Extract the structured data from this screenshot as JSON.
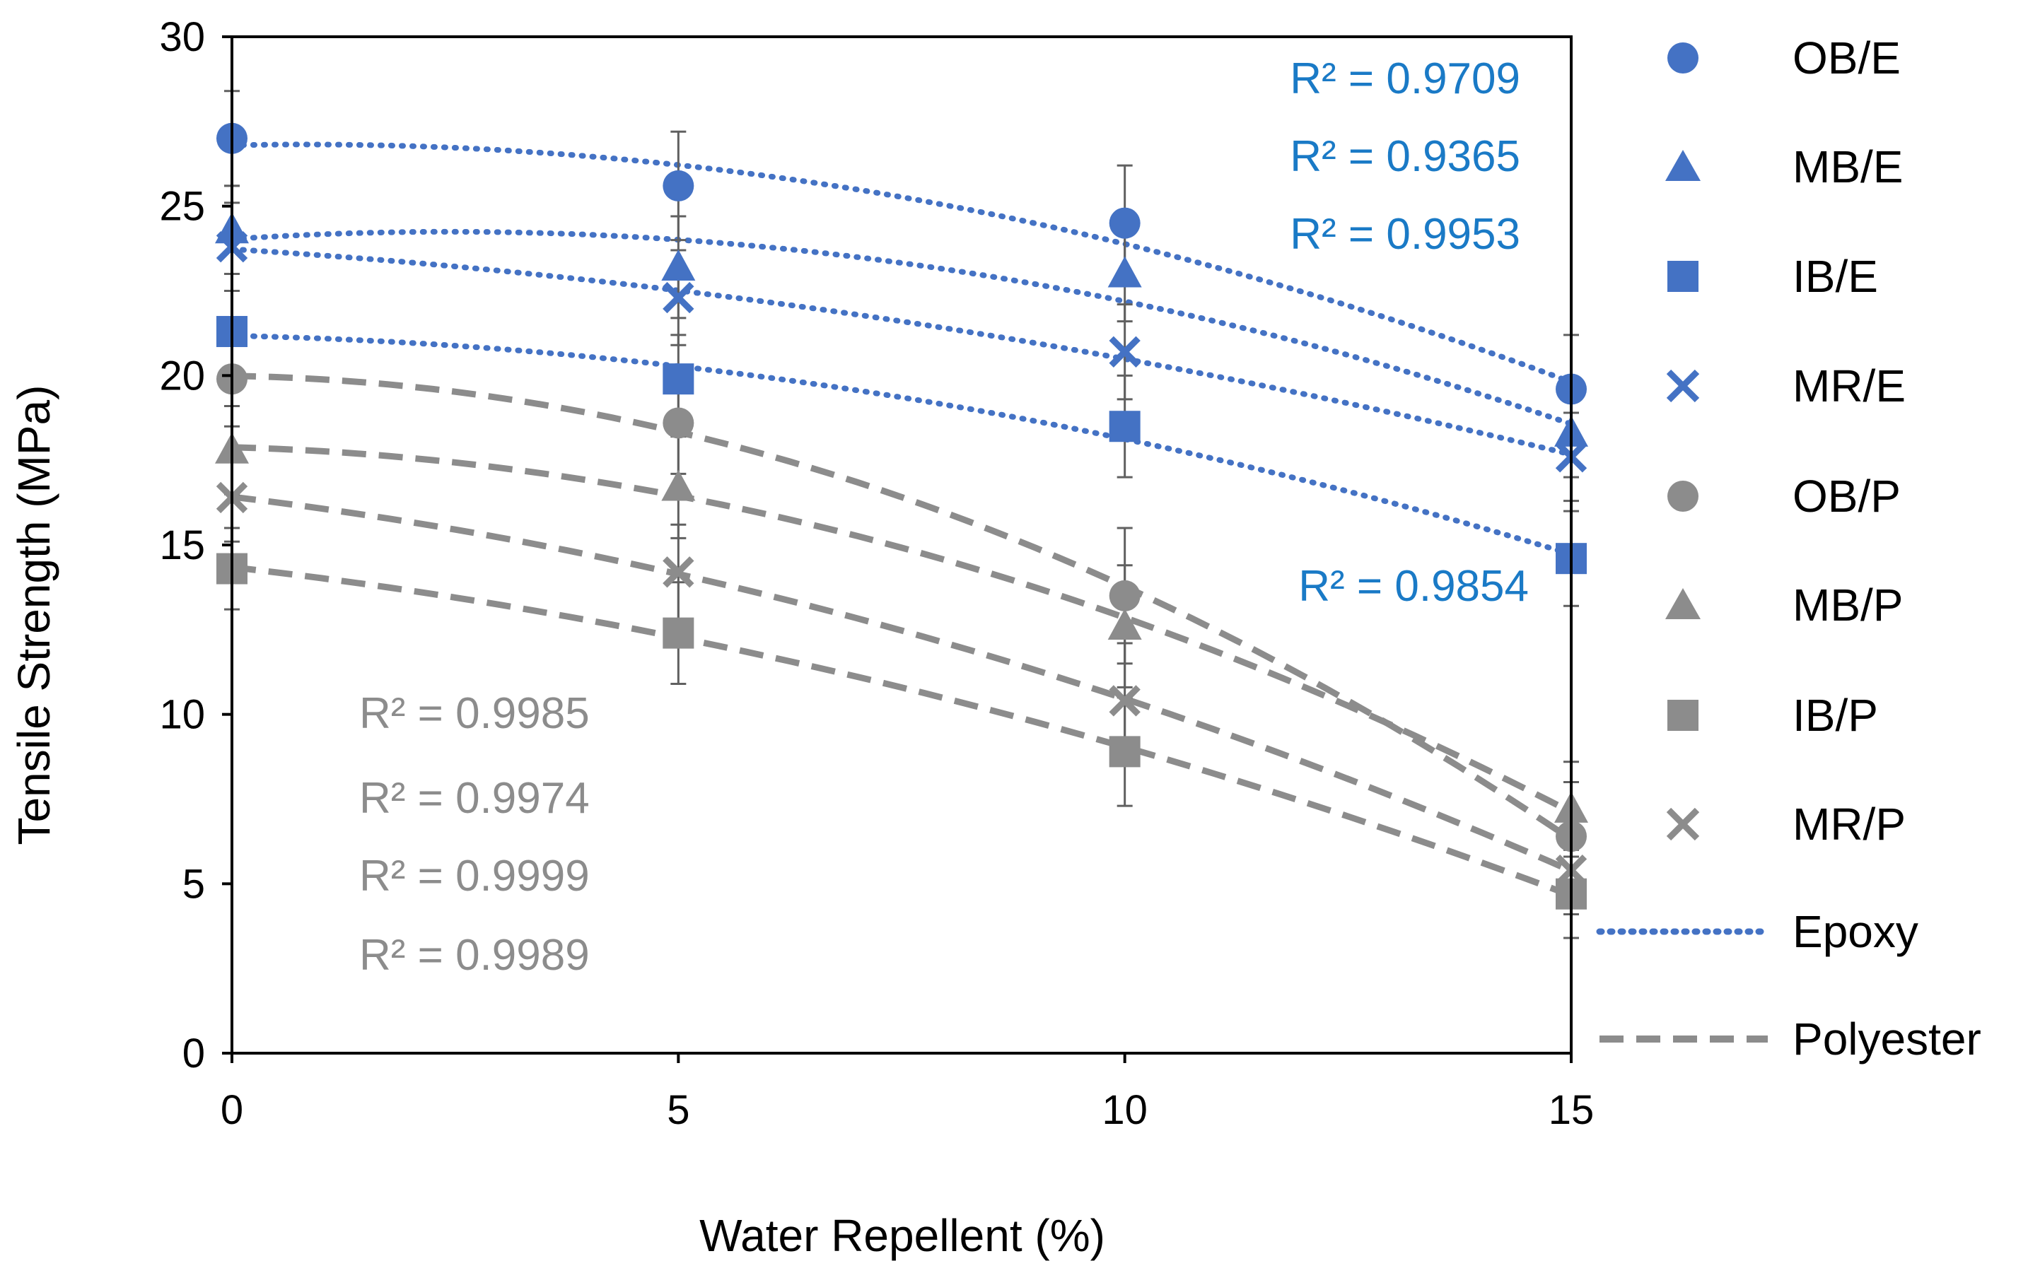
{
  "chart_data": {
    "type": "scatter",
    "title": "",
    "xlabel": "Water Repellent (%)",
    "ylabel": "Tensile Strength (MPa)",
    "xlim": [
      0,
      15
    ],
    "ylim": [
      0,
      30
    ],
    "xticks": [
      "0",
      "5",
      "10",
      "15"
    ],
    "yticks": [
      "0",
      "5",
      "10",
      "15",
      "20",
      "25",
      "30"
    ],
    "grid": false,
    "legend_position": "right",
    "x": [
      0,
      5,
      10,
      15
    ],
    "series": [
      {
        "name": "OB/E",
        "group": "epoxy",
        "marker": "circle",
        "color": "#4472c4",
        "values": [
          27.0,
          25.6,
          24.5,
          19.6
        ],
        "errors": [
          1.4,
          1.6,
          1.7,
          1.6
        ]
      },
      {
        "name": "MB/E",
        "group": "epoxy",
        "marker": "triangle",
        "color": "#4472c4",
        "values": [
          24.3,
          23.2,
          23.0,
          18.3
        ],
        "errors": [
          1.3,
          1.5,
          1.4,
          1.3
        ]
      },
      {
        "name": "IB/E",
        "group": "epoxy",
        "marker": "square",
        "color": "#4472c4",
        "values": [
          21.3,
          19.9,
          18.5,
          14.6
        ],
        "errors": [
          1.2,
          1.3,
          1.5,
          1.4
        ]
      },
      {
        "name": "MR/E",
        "group": "epoxy",
        "marker": "x",
        "color": "#4472c4",
        "values": [
          23.8,
          22.3,
          20.7,
          17.6
        ],
        "errors": [
          1.3,
          1.4,
          1.4,
          1.3
        ]
      },
      {
        "name": "OB/P",
        "group": "polyester",
        "marker": "circle",
        "color": "#8c8c8c",
        "values": [
          19.9,
          18.6,
          13.5,
          6.4
        ],
        "errors": [
          1.4,
          1.5,
          2.0,
          1.6
        ]
      },
      {
        "name": "MB/P",
        "group": "polyester",
        "marker": "triangle",
        "color": "#8c8c8c",
        "values": [
          17.8,
          16.7,
          12.6,
          7.2
        ],
        "errors": [
          1.3,
          1.5,
          1.8,
          1.4
        ]
      },
      {
        "name": "IB/P",
        "group": "polyester",
        "marker": "square",
        "color": "#8c8c8c",
        "values": [
          14.3,
          12.4,
          8.9,
          4.7
        ],
        "errors": [
          1.2,
          1.5,
          1.6,
          1.3
        ]
      },
      {
        "name": "MR/P",
        "group": "polyester",
        "marker": "x",
        "color": "#8c8c8c",
        "values": [
          16.4,
          14.2,
          10.4,
          5.4
        ],
        "errors": [
          1.3,
          1.4,
          1.7,
          1.3
        ]
      }
    ],
    "trendlines": [
      {
        "name": "Epoxy",
        "style": "dotted",
        "color": "#4472c4"
      },
      {
        "name": "Polyester",
        "style": "dashed",
        "color": "#8c8c8c"
      }
    ],
    "annotations": {
      "epoxy_r2": [
        "R² = 0.9709",
        "R² = 0.9365",
        "R² = 0.9953",
        "R² = 0.9854"
      ],
      "polyester_r2": [
        "R² = 0.9985",
        "R² = 0.9974",
        "R² = 0.9999",
        "R² = 0.9989"
      ]
    }
  }
}
